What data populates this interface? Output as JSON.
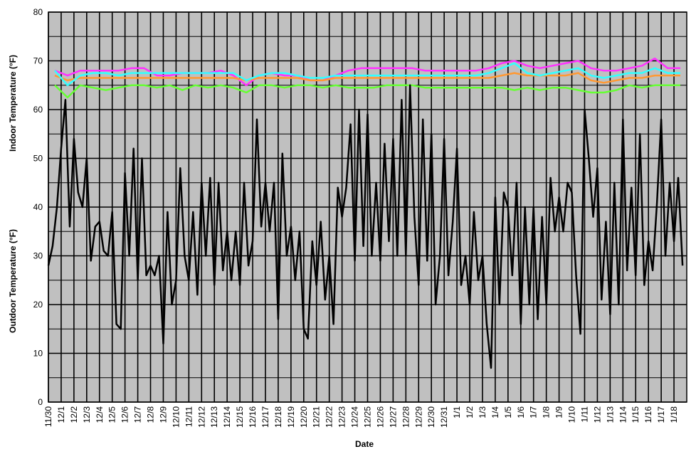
{
  "chart_data": {
    "type": "line",
    "y_labels": [
      "Indoor Temperature (°F)",
      "Outdoor Temperature (°F)"
    ],
    "xlabel": "Date",
    "background": "#c0c0c0",
    "grid": true,
    "xlim": [
      0,
      50
    ],
    "ylim": [
      0,
      80
    ],
    "yticks": [
      0,
      10,
      20,
      30,
      40,
      50,
      60,
      70,
      80
    ],
    "minor_yticks": [
      5,
      15,
      25,
      35,
      45,
      55,
      65,
      75
    ],
    "xticks": [
      {
        "value": 0,
        "label": "11/30"
      },
      {
        "value": 1,
        "label": "12/1"
      },
      {
        "value": 2,
        "label": "12/2"
      },
      {
        "value": 3,
        "label": "12/3"
      },
      {
        "value": 4,
        "label": "12/4"
      },
      {
        "value": 5,
        "label": "12/5"
      },
      {
        "value": 6,
        "label": "12/6"
      },
      {
        "value": 7,
        "label": "12/7"
      },
      {
        "value": 8,
        "label": "12/8"
      },
      {
        "value": 9,
        "label": "12/9"
      },
      {
        "value": 10,
        "label": "12/10"
      },
      {
        "value": 11,
        "label": "12/11"
      },
      {
        "value": 12,
        "label": "12/12"
      },
      {
        "value": 13,
        "label": "12/13"
      },
      {
        "value": 14,
        "label": "12/14"
      },
      {
        "value": 15,
        "label": "12/15"
      },
      {
        "value": 16,
        "label": "12/16"
      },
      {
        "value": 17,
        "label": "12/17"
      },
      {
        "value": 18,
        "label": "12/18"
      },
      {
        "value": 19,
        "label": "12/19"
      },
      {
        "value": 20,
        "label": "12/20"
      },
      {
        "value": 21,
        "label": "12/21"
      },
      {
        "value": 22,
        "label": "12/22"
      },
      {
        "value": 23,
        "label": "12/23"
      },
      {
        "value": 24,
        "label": "12/24"
      },
      {
        "value": 25,
        "label": "12/25"
      },
      {
        "value": 26,
        "label": "12/26"
      },
      {
        "value": 27,
        "label": "12/27"
      },
      {
        "value": 28,
        "label": "12/28"
      },
      {
        "value": 29,
        "label": "12/29"
      },
      {
        "value": 30,
        "label": "12/30"
      },
      {
        "value": 31,
        "label": "12/31"
      },
      {
        "value": 32,
        "label": "1/1"
      },
      {
        "value": 33,
        "label": "1/2"
      },
      {
        "value": 34,
        "label": "1/3"
      },
      {
        "value": 35,
        "label": "1/4"
      },
      {
        "value": 36,
        "label": "1/5"
      },
      {
        "value": 37,
        "label": "1/6"
      },
      {
        "value": 38,
        "label": "1/7"
      },
      {
        "value": 39,
        "label": "1/8"
      },
      {
        "value": 40,
        "label": "1/9"
      },
      {
        "value": 41,
        "label": "1/10"
      },
      {
        "value": 42,
        "label": "1/11"
      },
      {
        "value": 43,
        "label": "1/12"
      },
      {
        "value": 44,
        "label": "1/13"
      },
      {
        "value": 45,
        "label": "1/14"
      },
      {
        "value": 46,
        "label": "1/15"
      },
      {
        "value": 47,
        "label": "1/16"
      },
      {
        "value": 48,
        "label": "1/17"
      },
      {
        "value": 49,
        "label": "1/18"
      }
    ],
    "series": [
      {
        "color": "#ff33ff",
        "x": [
          0.5,
          1.5,
          2.5,
          3.5,
          4.5,
          5.5,
          6.5,
          7.5,
          8.5,
          9.5,
          10.5,
          11.5,
          12.5,
          13.5,
          14.5,
          15.5,
          16.5,
          17.5,
          18.5,
          19.5,
          20.5,
          21.5,
          22.5,
          23.5,
          24.5,
          25.5,
          26.5,
          27.5,
          28.5,
          29.5,
          30.5,
          31.5,
          32.5,
          33.5,
          34.5,
          35.5,
          36.5,
          37.5,
          38.5,
          39.5,
          40.5,
          41.5,
          42.5,
          43.5,
          44.5,
          45.5,
          46.5,
          47.5,
          48.5,
          49.5
        ],
        "values": [
          68,
          67,
          68,
          68,
          68,
          68,
          68.5,
          68.5,
          67,
          67,
          67.5,
          67.5,
          67.5,
          68,
          67,
          65,
          67,
          67.5,
          67,
          67,
          66,
          66,
          67,
          68,
          68.5,
          68.5,
          68.5,
          68.5,
          68.5,
          68,
          68,
          68,
          68,
          68,
          68.5,
          69.5,
          70,
          69,
          68.5,
          69,
          69.5,
          70,
          68.5,
          68,
          68,
          68.5,
          69,
          70.5,
          68.5,
          68.5
        ]
      },
      {
        "color": "#ff9933",
        "x": [
          0.5,
          1.5,
          2.5,
          3.5,
          4.5,
          5.5,
          6.5,
          7.5,
          8.5,
          9.5,
          10.5,
          11.5,
          12.5,
          13.5,
          14.5,
          15.5,
          16.5,
          17.5,
          18.5,
          19.5,
          20.5,
          21.5,
          22.5,
          23.5,
          24.5,
          25.5,
          26.5,
          27.5,
          28.5,
          29.5,
          30.5,
          31.5,
          32.5,
          33.5,
          34.5,
          35.5,
          36.5,
          37.5,
          38.5,
          39.5,
          40.5,
          41.5,
          42.5,
          43.5,
          44.5,
          45.5,
          46.5,
          47.5,
          48.5,
          49.5
        ],
        "values": [
          67,
          66,
          66.5,
          66.5,
          66.5,
          66.5,
          66.5,
          66.5,
          66.5,
          66.5,
          66.5,
          66.5,
          66.5,
          66.5,
          66.5,
          66,
          66.5,
          66.5,
          66.5,
          66.5,
          66,
          66,
          66.5,
          66.5,
          66.5,
          66.5,
          66.5,
          66.5,
          66.5,
          66.5,
          66.5,
          66.5,
          66.5,
          66.5,
          66.5,
          67,
          67.5,
          67,
          67,
          67,
          67,
          67.5,
          66,
          65.5,
          66,
          66.5,
          66.5,
          67,
          67,
          67
        ]
      },
      {
        "color": "#33ffff",
        "x": [
          0.5,
          1.5,
          2.5,
          3.5,
          4.5,
          5.5,
          6.5,
          7.5,
          8.5,
          9.5,
          10.5,
          11.5,
          12.5,
          13.5,
          14.5,
          15.5,
          16.5,
          17.5,
          18.5,
          19.5,
          20.5,
          21.5,
          22.5,
          23.5,
          24.5,
          25.5,
          26.5,
          27.5,
          28.5,
          29.5,
          30.5,
          31.5,
          32.5,
          33.5,
          34.5,
          35.5,
          36.5,
          37.5,
          38.5,
          39.5,
          40.5,
          41.5,
          42.5,
          43.5,
          44.5,
          45.5,
          46.5,
          47.5,
          48.5,
          49.5
        ],
        "values": [
          68,
          65,
          67,
          67.5,
          67.5,
          67,
          67.5,
          67.5,
          67.5,
          67.5,
          67.5,
          67.5,
          67.5,
          67.5,
          67.5,
          66,
          67,
          67.5,
          67.5,
          67,
          66.5,
          66.5,
          67,
          67,
          67,
          67,
          67,
          67,
          67,
          67,
          67,
          67,
          67,
          67,
          67.5,
          68.5,
          69.5,
          67.5,
          67,
          67.5,
          68,
          68.5,
          67,
          66.5,
          67,
          67.5,
          67.5,
          68.5,
          67.5,
          67.5
        ]
      },
      {
        "color": "#66ff33",
        "x": [
          0.5,
          1.5,
          2.5,
          3.5,
          4.5,
          5.5,
          6.5,
          7.5,
          8.5,
          9.5,
          10.5,
          11.5,
          12.5,
          13.5,
          14.5,
          15.5,
          16.5,
          17.5,
          18.5,
          19.5,
          20.5,
          21.5,
          22.5,
          23.5,
          24.5,
          25.5,
          26.5,
          27.5,
          28.5,
          29.5,
          30.5,
          31.5,
          32.5,
          33.5,
          34.5,
          35.5,
          36.5,
          37.5,
          38.5,
          39.5,
          40.5,
          41.5,
          42.5,
          43.5,
          44.5,
          45.5,
          46.5,
          47.5,
          48.5,
          49.5
        ],
        "values": [
          65,
          62.5,
          65,
          64.5,
          64,
          64.5,
          65,
          65,
          64.5,
          65,
          64,
          65,
          64.5,
          65,
          64.5,
          63.5,
          65,
          65,
          64.5,
          65,
          65,
          64.5,
          65,
          64.5,
          64.5,
          64.5,
          65,
          65,
          65,
          64.5,
          64.5,
          64.5,
          64.5,
          64.5,
          64.5,
          64.5,
          64,
          64.5,
          64,
          64.5,
          64.5,
          64,
          63.5,
          63.5,
          64,
          65,
          64.5,
          65,
          65,
          65
        ]
      },
      {
        "color": "#000000",
        "x": [
          0,
          0.33,
          0.67,
          1,
          1.33,
          1.67,
          2,
          2.33,
          2.67,
          3,
          3.33,
          3.67,
          4,
          4.33,
          4.67,
          5,
          5.33,
          5.67,
          6,
          6.33,
          6.67,
          7,
          7.33,
          7.67,
          8,
          8.33,
          8.67,
          9,
          9.33,
          9.67,
          10,
          10.33,
          10.67,
          11,
          11.33,
          11.67,
          12,
          12.33,
          12.67,
          13,
          13.33,
          13.67,
          14,
          14.33,
          14.67,
          15,
          15.33,
          15.67,
          16,
          16.33,
          16.67,
          17,
          17.33,
          17.67,
          18,
          18.33,
          18.67,
          19,
          19.33,
          19.67,
          20,
          20.33,
          20.67,
          21,
          21.33,
          21.67,
          22,
          22.33,
          22.67,
          23,
          23.33,
          23.67,
          24,
          24.33,
          24.67,
          25,
          25.33,
          25.67,
          26,
          26.33,
          26.67,
          27,
          27.33,
          27.67,
          28,
          28.33,
          28.67,
          29,
          29.33,
          29.67,
          30,
          30.33,
          30.67,
          31,
          31.33,
          31.67,
          32,
          32.33,
          32.67,
          33,
          33.33,
          33.67,
          34,
          34.33,
          34.67,
          35,
          35.33,
          35.67,
          36,
          36.33,
          36.67,
          37,
          37.33,
          37.67,
          38,
          38.33,
          38.67,
          39,
          39.33,
          39.67,
          40,
          40.33,
          40.67,
          41,
          41.33,
          41.67,
          42,
          42.33,
          42.67,
          43,
          43.33,
          43.67,
          44,
          44.33,
          44.67,
          45,
          45.33,
          45.67,
          46,
          46.33,
          46.67,
          47,
          47.33,
          47.67,
          48,
          48.33,
          48.67,
          49,
          49.33,
          49.67
        ],
        "values": [
          28,
          32,
          40,
          52,
          62,
          36,
          54,
          43,
          40,
          50,
          29,
          36,
          37,
          31,
          30,
          39,
          16,
          15,
          47,
          30,
          52,
          25,
          50,
          26,
          28,
          26,
          30,
          12,
          39,
          20,
          25,
          48,
          30,
          25,
          39,
          22,
          45,
          30,
          46,
          24,
          45,
          27,
          35,
          25,
          35,
          24,
          45,
          28,
          33,
          58,
          36,
          45,
          35,
          45,
          17,
          51,
          30,
          36,
          25,
          35,
          15,
          13,
          33,
          24,
          37,
          21,
          30,
          16,
          44,
          38,
          44,
          57,
          29,
          60,
          32,
          59,
          30,
          45,
          29,
          53,
          33,
          54,
          30,
          62,
          30,
          65,
          38,
          24,
          58,
          29,
          55,
          20,
          30,
          54,
          26,
          37,
          52,
          24,
          30,
          20,
          39,
          25,
          30,
          16,
          7,
          42,
          20,
          43,
          40,
          26,
          45,
          16,
          40,
          20,
          40,
          17,
          38,
          20,
          46,
          35,
          42,
          35,
          45,
          43,
          26,
          14,
          60,
          50,
          38,
          48,
          21,
          37,
          18,
          45,
          20,
          58,
          27,
          44,
          26,
          55,
          24,
          33,
          27,
          41,
          58,
          30,
          45,
          33,
          46,
          28
        ]
      }
    ]
  }
}
